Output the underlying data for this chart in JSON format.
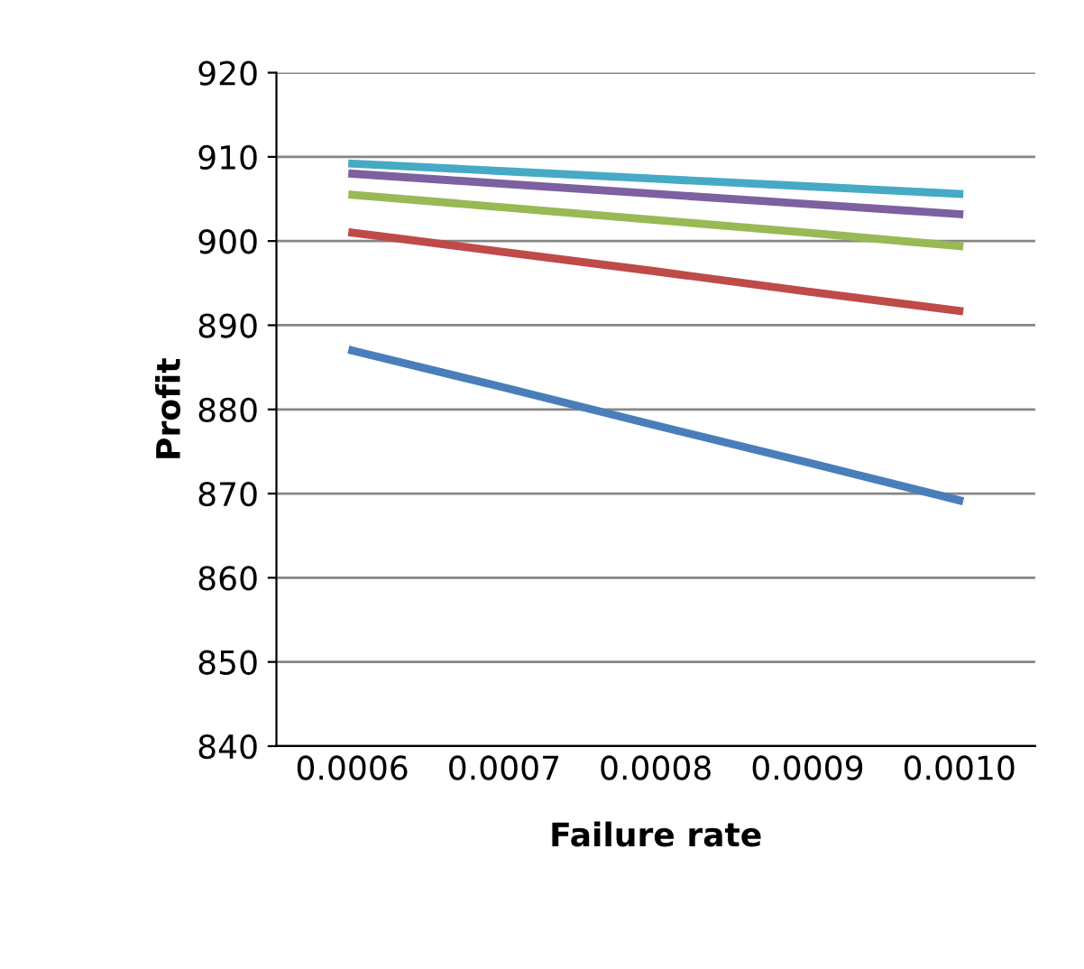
{
  "chart_data": {
    "type": "line",
    "xlabel": "Failure rate",
    "ylabel": "Profit",
    "categories": [
      "0.0006",
      "0.0007",
      "0.0008",
      "0.0009",
      "0.0010"
    ],
    "series": [
      {
        "color": "#4a7ebb",
        "values": [
          887,
          882.6,
          878.1,
          873.7,
          869.2
        ]
      },
      {
        "color": "#be4b48",
        "values": [
          901,
          898.7,
          896.4,
          894,
          891.7
        ]
      },
      {
        "color": "#98b954",
        "values": [
          905.5,
          904,
          902.5,
          901,
          899.4
        ]
      },
      {
        "color": "#7d60a0",
        "values": [
          908,
          906.8,
          905.6,
          904.4,
          903.2
        ]
      },
      {
        "color": "#46aac5",
        "values": [
          909.2,
          908.3,
          907.4,
          906.5,
          905.6
        ]
      }
    ],
    "ylim": [
      840,
      920
    ],
    "yticks": [
      840,
      850,
      860,
      870,
      880,
      890,
      900,
      910,
      920
    ],
    "grid": "y",
    "marker": "none",
    "line_style": "solid",
    "legend": false
  }
}
